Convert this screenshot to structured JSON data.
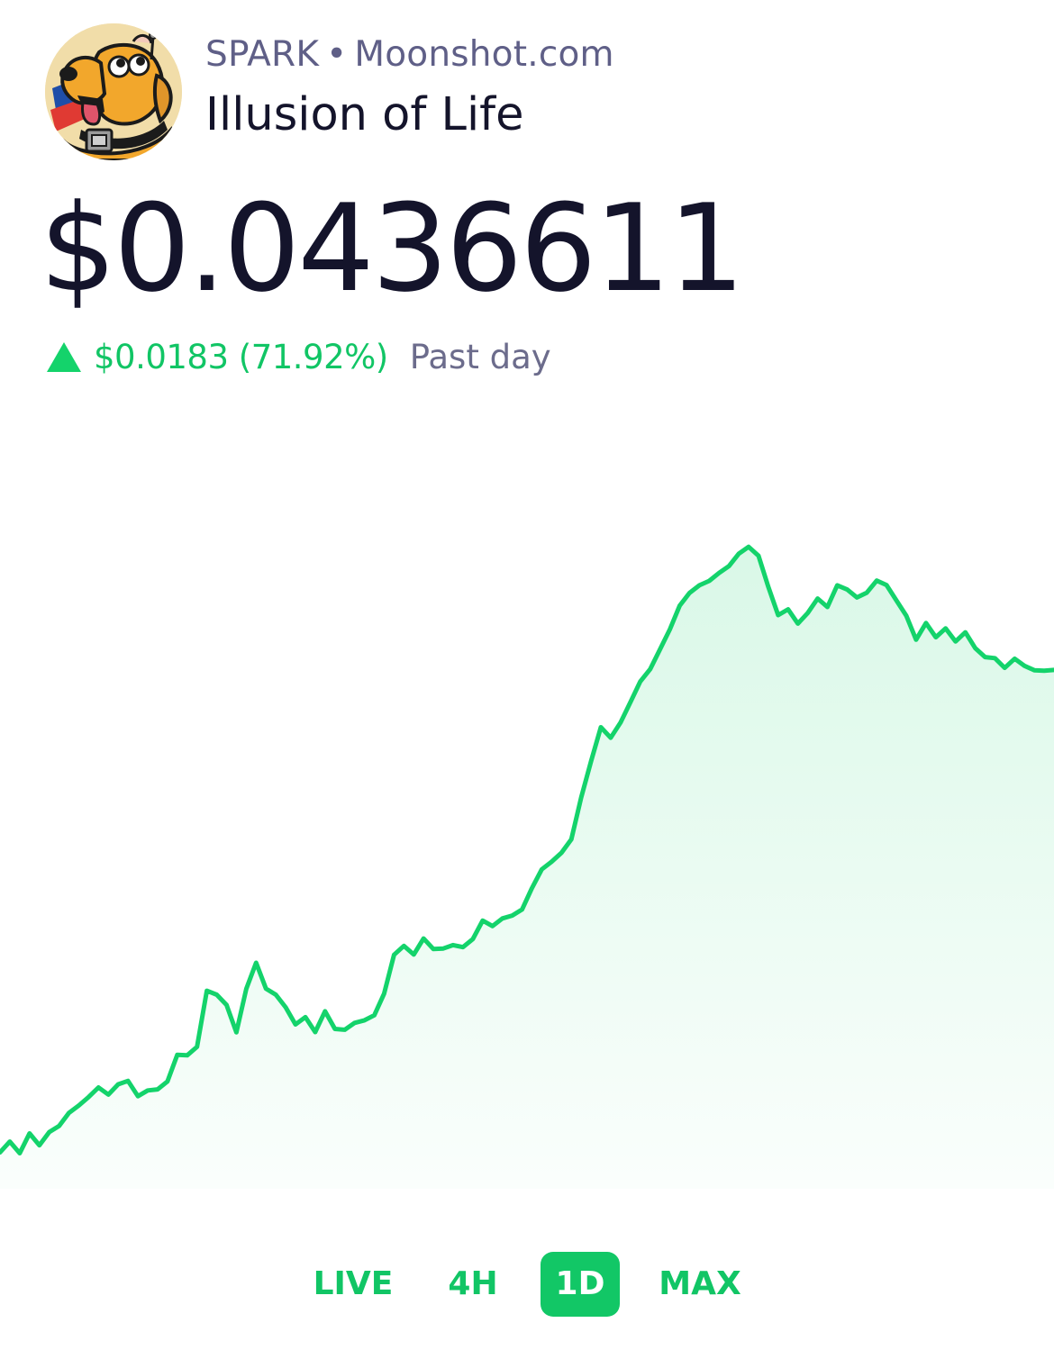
{
  "header": {
    "symbol": "SPARK",
    "separator": "•",
    "site": "Moonshot.com",
    "name": "Illusion of Life",
    "avatar_icon": "cartoon-dog-avatar"
  },
  "price": {
    "current": "$0.0436611",
    "change_value": "$0.0183 (71.92%)",
    "change_direction": "up",
    "period_label": "Past day",
    "up_color": "#14d36b"
  },
  "ranges": [
    {
      "label": "LIVE",
      "active": false
    },
    {
      "label": "4H",
      "active": false
    },
    {
      "label": "1D",
      "active": true
    },
    {
      "label": "MAX",
      "active": false
    }
  ],
  "chart_data": {
    "type": "area",
    "title": "",
    "xlabel": "",
    "ylabel": "",
    "grid": false,
    "line_color": "#14d36b",
    "ylim": [
      0.024,
      0.052
    ],
    "series": [
      {
        "values": [
          0.02538,
          0.02579,
          0.02535,
          0.0261,
          0.02565,
          0.02615,
          0.02638,
          0.02688,
          0.02716,
          0.02748,
          0.02784,
          0.02757,
          0.02796,
          0.02809,
          0.02751,
          0.02773,
          0.02777,
          0.02807,
          0.02908,
          0.02906,
          0.02938,
          0.03151,
          0.03136,
          0.03097,
          0.02993,
          0.03158,
          0.03257,
          0.03159,
          0.03136,
          0.03088,
          0.03023,
          0.03051,
          0.02994,
          0.03073,
          0.03006,
          0.03003,
          0.03029,
          0.03039,
          0.03058,
          0.0314,
          0.03287,
          0.03321,
          0.03288,
          0.03349,
          0.03309,
          0.03311,
          0.03324,
          0.03316,
          0.03347,
          0.03417,
          0.03396,
          0.03425,
          0.03436,
          0.03459,
          0.0354,
          0.03611,
          0.0364,
          0.03674,
          0.03725,
          0.03883,
          0.04021,
          0.0415,
          0.0411,
          0.04168,
          0.04245,
          0.04323,
          0.0437,
          0.04445,
          0.04521,
          0.04611,
          0.04659,
          0.04688,
          0.04705,
          0.04735,
          0.04761,
          0.04808,
          0.04834,
          0.048,
          0.04682,
          0.04575,
          0.04597,
          0.04543,
          0.04583,
          0.04638,
          0.04606,
          0.04688,
          0.04672,
          0.04642,
          0.0466,
          0.04706,
          0.04689,
          0.04631,
          0.04573,
          0.04482,
          0.04545,
          0.04491,
          0.04525,
          0.04475,
          0.0451,
          0.0445,
          0.04416,
          0.04412,
          0.04375,
          0.0441,
          0.04383,
          0.04366,
          0.04364,
          0.04367
        ]
      }
    ],
    "series_values_note_hidden": ""
  }
}
